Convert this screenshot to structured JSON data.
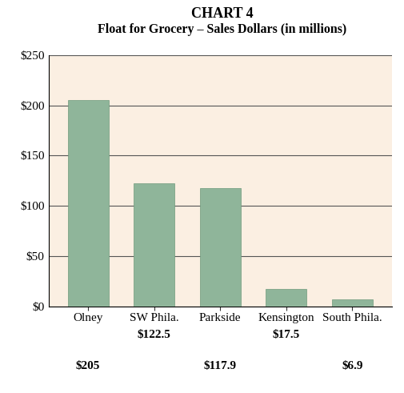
{
  "chart_data": {
    "type": "bar",
    "title": "CHART 4",
    "subtitle": "Float for Grocery – Sales Dollars (in millions)",
    "categories": [
      "Olney",
      "SW Phila.",
      "Parkside",
      "Kensington",
      "South Phila."
    ],
    "values": [
      205,
      122.5,
      117.9,
      17.5,
      6.9
    ],
    "value_labels": [
      "$205",
      "$122.5",
      "$117.9",
      "$17.5",
      "$6.9"
    ],
    "data_labels": true,
    "color": "#8fb59a",
    "ylim": [
      0,
      250
    ],
    "yticks": [
      {
        "value": 0,
        "label": "$0"
      },
      {
        "value": 50,
        "label": "$50"
      },
      {
        "value": 100,
        "label": "$100"
      },
      {
        "value": 150,
        "label": "$150"
      },
      {
        "value": 200,
        "label": "$200"
      },
      {
        "value": 250,
        "label": "$250"
      }
    ],
    "grid": true
  }
}
